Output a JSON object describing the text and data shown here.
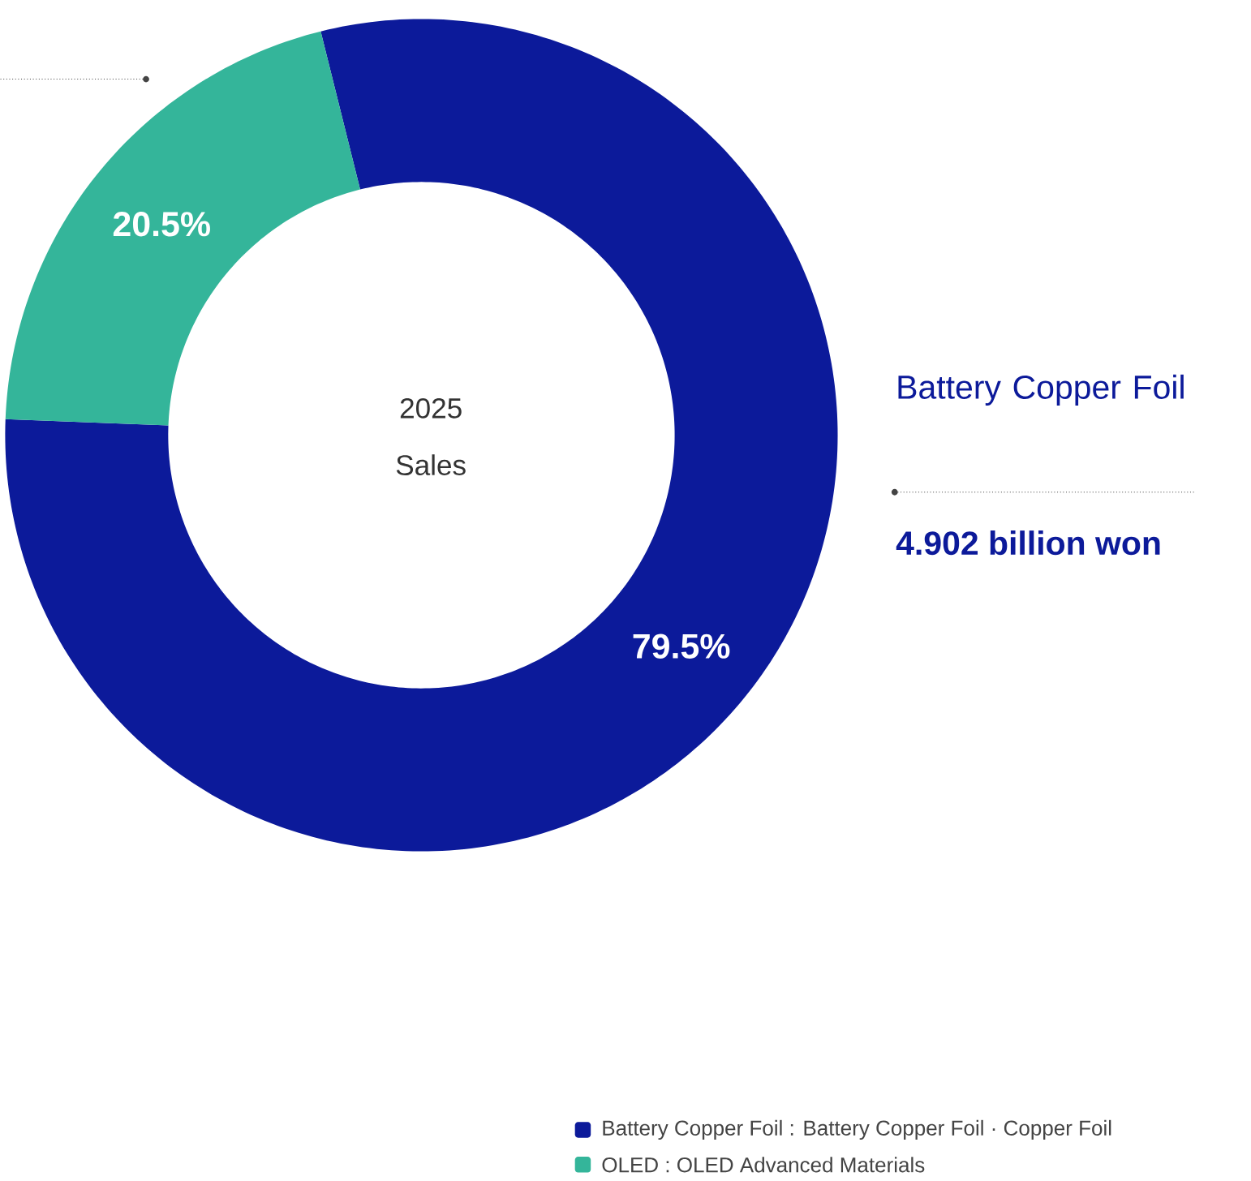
{
  "chart_data": {
    "type": "donut",
    "title": "2025 Sales",
    "categories": [
      "Battery Copper Foil : Battery Copper Foil · Copper Foil",
      "OLED : OLED Advanced Materials"
    ],
    "values": [
      79.5,
      20.5
    ],
    "colors": [
      "#0c1a9a",
      "#34b59a"
    ],
    "value_labels": [
      "79.5%",
      "20.5%"
    ],
    "legend": "bottom right",
    "annotations": [
      "Battery Copper Foil",
      "4.902 billion won"
    ]
  }
}
